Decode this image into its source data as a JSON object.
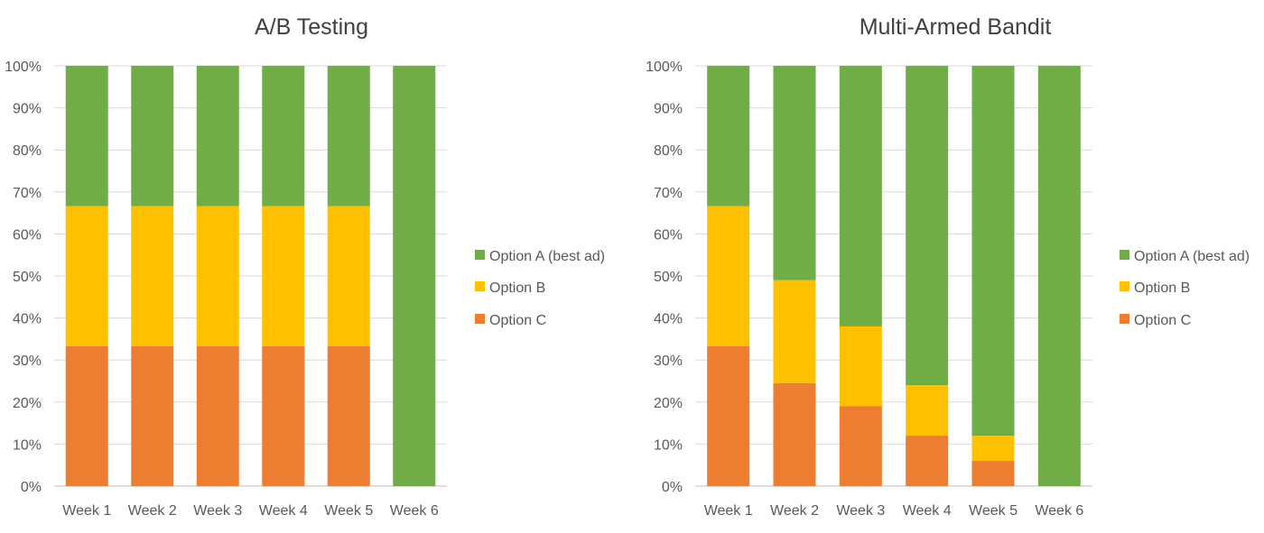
{
  "chart_data": [
    {
      "type": "bar",
      "stacked": true,
      "normalized": true,
      "title": "A/B Testing",
      "xlabel": "",
      "ylabel": "",
      "categories": [
        "Week 1",
        "Week 2",
        "Week 3",
        "Week 4",
        "Week 5",
        "Week 6"
      ],
      "y_ticks": [
        "0%",
        "10%",
        "20%",
        "30%",
        "40%",
        "50%",
        "60%",
        "70%",
        "80%",
        "90%",
        "100%"
      ],
      "ylim": [
        0,
        100
      ],
      "grid": true,
      "legend_position": "right",
      "series": [
        {
          "name": "Option C",
          "color": "#ED7D31",
          "values": [
            33.3,
            33.3,
            33.3,
            33.3,
            33.3,
            0
          ]
        },
        {
          "name": "Option B",
          "color": "#FFC000",
          "values": [
            33.3,
            33.3,
            33.3,
            33.3,
            33.3,
            0
          ]
        },
        {
          "name": "Option A (best ad)",
          "color": "#70AD47",
          "values": [
            33.4,
            33.4,
            33.4,
            33.4,
            33.4,
            100
          ]
        }
      ],
      "legend_order": [
        "Option A (best ad)",
        "Option B",
        "Option C"
      ]
    },
    {
      "type": "bar",
      "stacked": true,
      "normalized": true,
      "title": "Multi-Armed Bandit",
      "xlabel": "",
      "ylabel": "",
      "categories": [
        "Week 1",
        "Week 2",
        "Week 3",
        "Week 4",
        "Week 5",
        "Week 6"
      ],
      "y_ticks": [
        "0%",
        "10%",
        "20%",
        "30%",
        "40%",
        "50%",
        "60%",
        "70%",
        "80%",
        "90%",
        "100%"
      ],
      "ylim": [
        0,
        100
      ],
      "grid": true,
      "legend_position": "right",
      "series": [
        {
          "name": "Option C",
          "color": "#ED7D31",
          "values": [
            33.3,
            24.5,
            19,
            12,
            6,
            0
          ]
        },
        {
          "name": "Option B",
          "color": "#FFC000",
          "values": [
            33.3,
            24.5,
            19,
            12,
            6,
            0
          ]
        },
        {
          "name": "Option A (best ad)",
          "color": "#70AD47",
          "values": [
            33.4,
            51,
            62,
            76,
            88,
            100
          ]
        }
      ],
      "legend_order": [
        "Option A (best ad)",
        "Option B",
        "Option C"
      ]
    }
  ]
}
